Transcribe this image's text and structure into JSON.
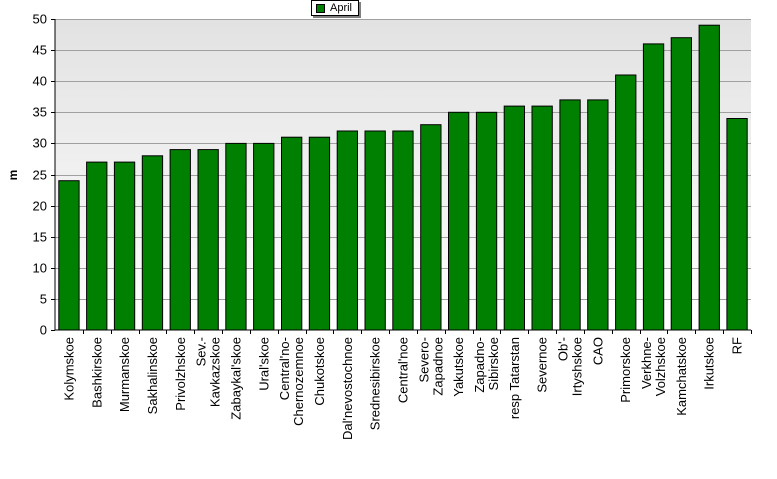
{
  "chart_data": {
    "type": "bar",
    "title": "",
    "xlabel": "",
    "ylabel": "m",
    "ylim": [
      0,
      50
    ],
    "ytick_step": 5,
    "grid": true,
    "legend_position": "top-center",
    "categories": [
      [
        "Kolymskoe"
      ],
      [
        "Bashkirskoe"
      ],
      [
        "Murmanskoe"
      ],
      [
        "Sakhalinskoe"
      ],
      [
        "Privolzhskoe"
      ],
      [
        "Sev.-",
        "Kavkazskoe"
      ],
      [
        "Zabaykal'skoe"
      ],
      [
        "Ural'skoe"
      ],
      [
        "Central'no-",
        "Chernozemnoe"
      ],
      [
        "Chukotskoe"
      ],
      [
        "Dal'nevostochnoe"
      ],
      [
        "Srednesibirskoe"
      ],
      [
        "Central'noe"
      ],
      [
        "Severo-",
        "Zapadnoe"
      ],
      [
        "Yakutskoe"
      ],
      [
        "Zapadno-",
        "Sibirskoe"
      ],
      [
        "resp Tatarstan"
      ],
      [
        "Severnoe"
      ],
      [
        "Ob'-",
        "Irtyshskoe"
      ],
      [
        "CAO"
      ],
      [
        "Primorskoe"
      ],
      [
        "Verkhne-",
        "Volzhskoe"
      ],
      [
        "Kamchatskoe"
      ],
      [
        "Irkutskoe"
      ],
      [
        "RF"
      ]
    ],
    "series": [
      {
        "name": "April",
        "color": "#008000",
        "values": [
          24,
          27,
          27,
          28,
          29,
          29,
          30,
          30,
          31,
          31,
          32,
          32,
          32,
          33,
          35,
          35,
          36,
          36,
          37,
          37,
          41,
          46,
          47,
          49,
          34
        ]
      }
    ]
  }
}
